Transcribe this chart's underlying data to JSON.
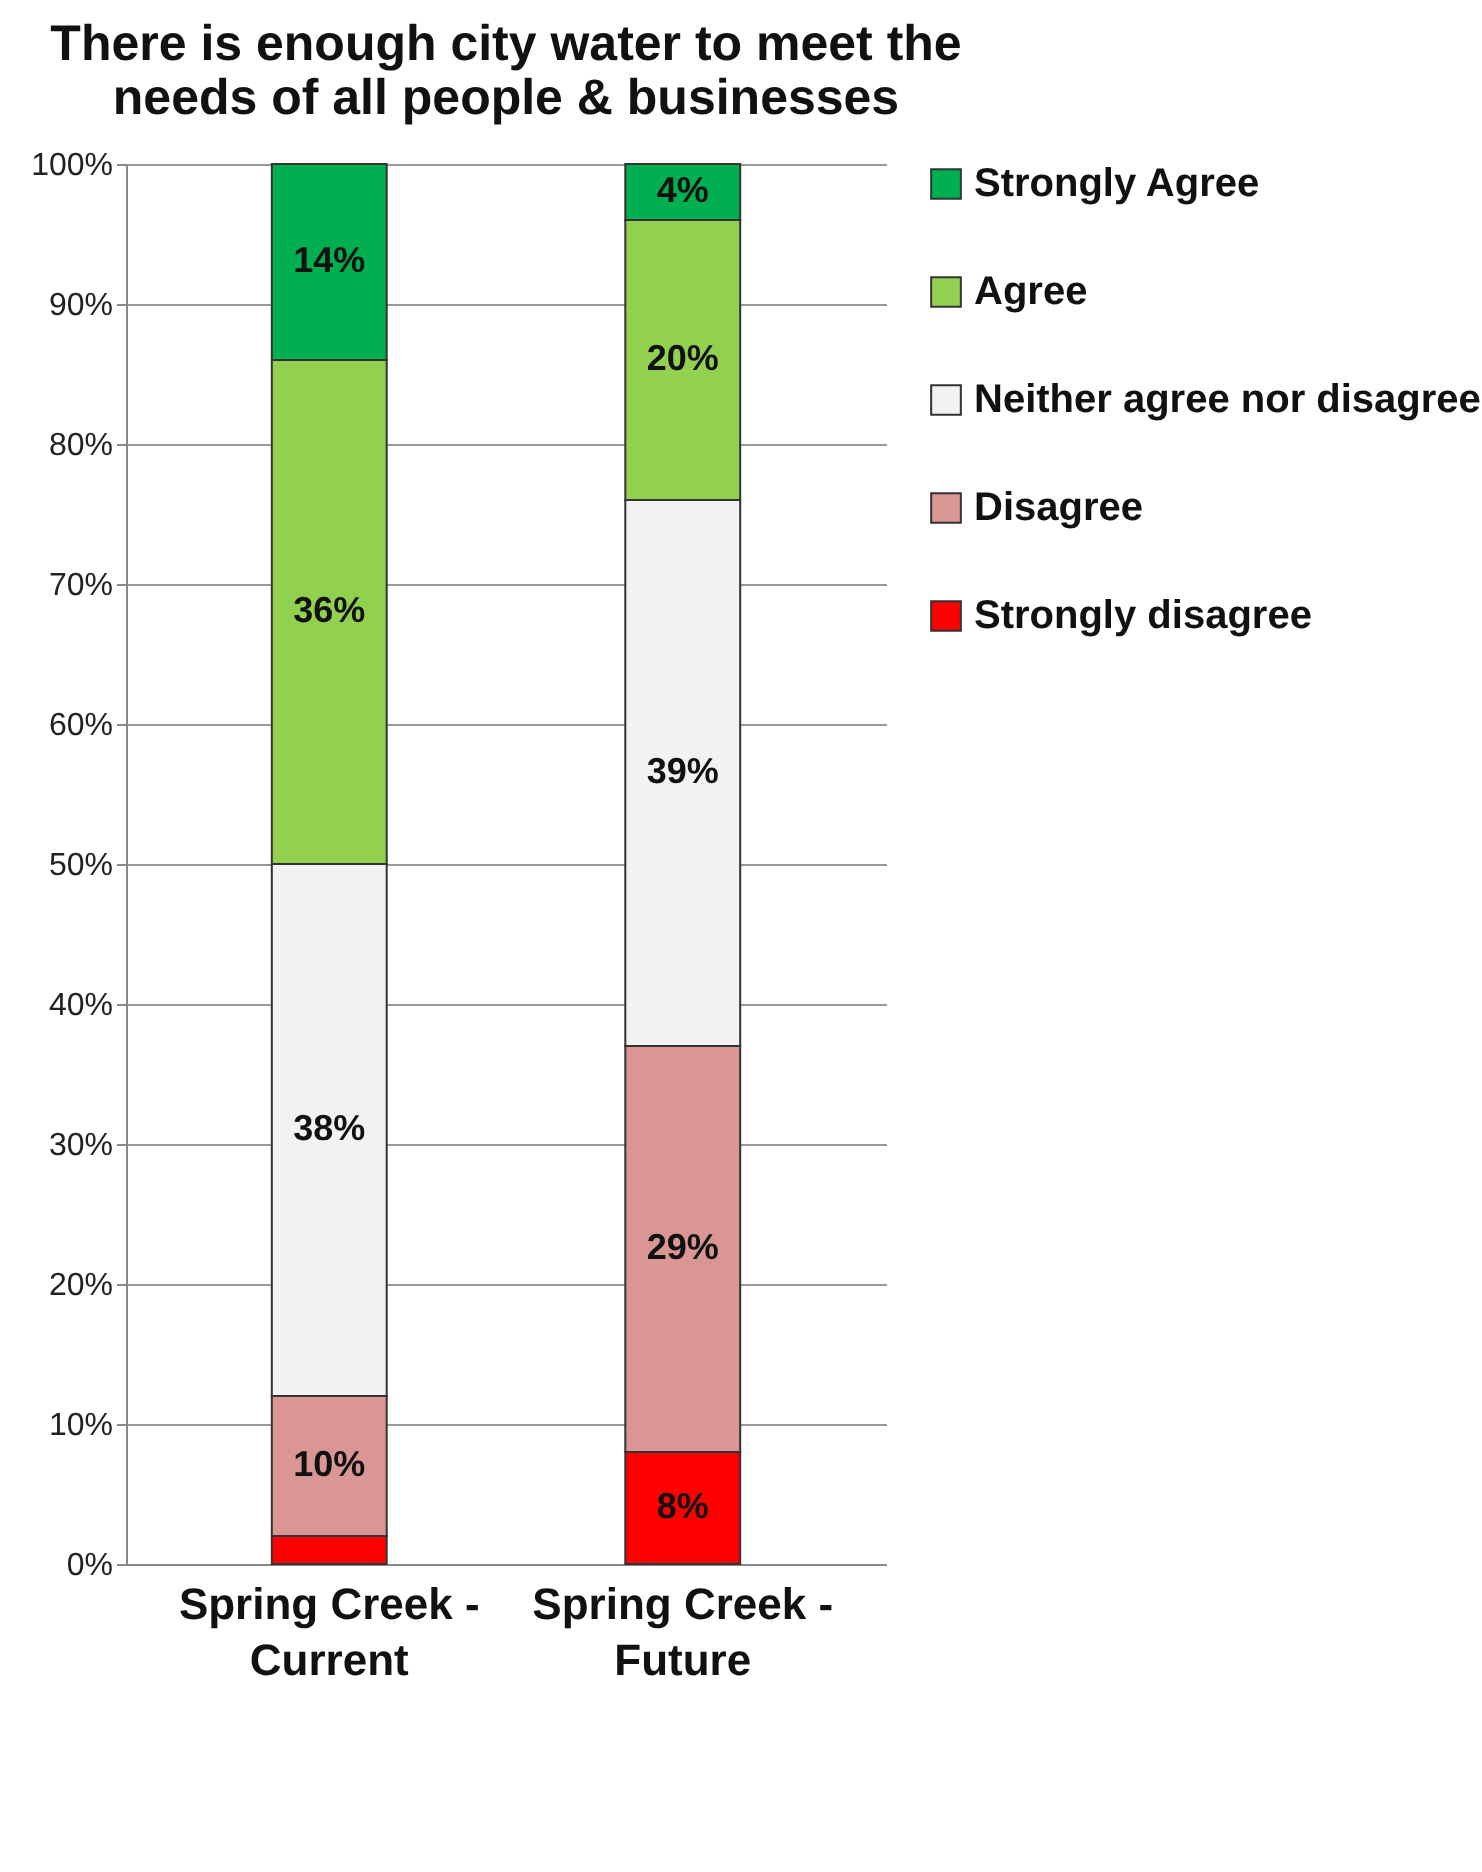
{
  "chart_data": {
    "type": "bar",
    "stacked": true,
    "title": "There is enough city water to meet the needs of all people & businesses",
    "categories": [
      "Spring Creek - Current",
      "Spring Creek - Future"
    ],
    "series": [
      {
        "name": "Strongly disagree",
        "color": "#ff0000",
        "values": [
          2,
          8
        ],
        "value_labels": [
          null,
          "8%"
        ]
      },
      {
        "name": "Disagree",
        "color": "#d99694",
        "values": [
          10,
          29
        ],
        "value_labels": [
          "10%",
          "29%"
        ]
      },
      {
        "name": "Neither agree nor disagree",
        "color": "#f2f2f2",
        "values": [
          38,
          39
        ],
        "value_labels": [
          "38%",
          "39%"
        ]
      },
      {
        "name": "Agree",
        "color": "#92d050",
        "values": [
          36,
          20
        ],
        "value_labels": [
          "36%",
          "20%"
        ]
      },
      {
        "name": "Strongly Agree",
        "color": "#00b050",
        "values": [
          14,
          4
        ],
        "value_labels": [
          "14%",
          "4%"
        ]
      }
    ],
    "ylim": [
      0,
      100
    ],
    "yticks": [
      {
        "value": 0,
        "label": "0%"
      },
      {
        "value": 10,
        "label": "10%"
      },
      {
        "value": 20,
        "label": "20%"
      },
      {
        "value": 30,
        "label": "30%"
      },
      {
        "value": 40,
        "label": "40%"
      },
      {
        "value": 50,
        "label": "50%"
      },
      {
        "value": 60,
        "label": "60%"
      },
      {
        "value": 70,
        "label": "70%"
      },
      {
        "value": 80,
        "label": "80%"
      },
      {
        "value": 90,
        "label": "90%"
      },
      {
        "value": 100,
        "label": "100%"
      }
    ],
    "grid": "y",
    "legend": "right"
  }
}
